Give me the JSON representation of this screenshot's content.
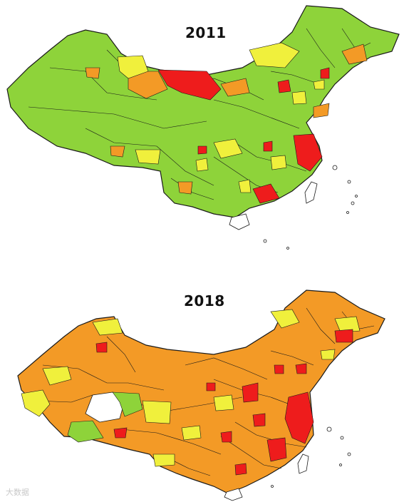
{
  "maps": [
    {
      "year": "2011",
      "colors": {
        "base": "#8ed33a",
        "low": "#8ed33a",
        "mid": "#f0f03c",
        "high": "#f39a26",
        "top": "#ee1c1c",
        "border": "#1a1a1a"
      }
    },
    {
      "year": "2018",
      "colors": {
        "base": "#f39a26",
        "low": "#8ed33a",
        "mid": "#f0f03c",
        "high": "#f39a26",
        "top": "#ee1c1c",
        "border": "#1a1a1a"
      }
    }
  ],
  "watermark": "大数据"
}
